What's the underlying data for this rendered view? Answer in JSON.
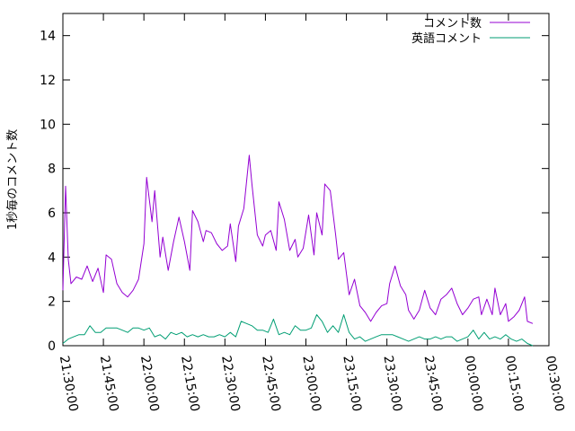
{
  "chart_data": {
    "type": "line",
    "ylabel": "1秒毎のコメント数",
    "xlabel": "",
    "title": "",
    "ylim": [
      0,
      15
    ],
    "y_ticks": [
      0,
      2,
      4,
      6,
      8,
      10,
      12,
      14
    ],
    "x_range": [
      "21:30:00",
      "00:30:00"
    ],
    "x_ticks": [
      "21:30:00",
      "21:45:00",
      "22:00:00",
      "22:15:00",
      "22:30:00",
      "22:45:00",
      "23:00:00",
      "23:15:00",
      "23:30:00",
      "23:45:00",
      "00:00:00",
      "00:15:00",
      "00:30:00"
    ],
    "grid": false,
    "legend_position": "top-right",
    "series": [
      {
        "name": "コメント数",
        "color": "#9400d3",
        "points": [
          [
            "21:30:00",
            2.5
          ],
          [
            "21:31:00",
            7.2
          ],
          [
            "21:32:00",
            3.9
          ],
          [
            "21:33:00",
            2.8
          ],
          [
            "21:35:00",
            3.1
          ],
          [
            "21:37:00",
            3.0
          ],
          [
            "21:39:00",
            3.6
          ],
          [
            "21:41:00",
            2.9
          ],
          [
            "21:43:00",
            3.5
          ],
          [
            "21:45:00",
            2.4
          ],
          [
            "21:46:00",
            4.1
          ],
          [
            "21:48:00",
            3.9
          ],
          [
            "21:50:00",
            2.8
          ],
          [
            "21:52:00",
            2.4
          ],
          [
            "21:54:00",
            2.2
          ],
          [
            "21:56:00",
            2.5
          ],
          [
            "21:58:00",
            3.0
          ],
          [
            "22:00:00",
            4.6
          ],
          [
            "22:01:00",
            7.6
          ],
          [
            "22:03:00",
            5.6
          ],
          [
            "22:04:00",
            7.0
          ],
          [
            "22:06:00",
            4.0
          ],
          [
            "22:07:00",
            4.9
          ],
          [
            "22:09:00",
            3.4
          ],
          [
            "22:11:00",
            4.7
          ],
          [
            "22:13:00",
            5.8
          ],
          [
            "22:15:00",
            4.7
          ],
          [
            "22:17:00",
            3.4
          ],
          [
            "22:18:00",
            6.1
          ],
          [
            "22:20:00",
            5.6
          ],
          [
            "22:22:00",
            4.7
          ],
          [
            "22:23:00",
            5.2
          ],
          [
            "22:25:00",
            5.1
          ],
          [
            "22:27:00",
            4.6
          ],
          [
            "22:29:00",
            4.3
          ],
          [
            "22:31:00",
            4.5
          ],
          [
            "22:32:00",
            5.5
          ],
          [
            "22:34:00",
            3.8
          ],
          [
            "22:35:00",
            5.4
          ],
          [
            "22:37:00",
            6.2
          ],
          [
            "22:39:00",
            8.6
          ],
          [
            "22:40:00",
            7.3
          ],
          [
            "22:42:00",
            5.0
          ],
          [
            "22:44:00",
            4.5
          ],
          [
            "22:45:00",
            5.0
          ],
          [
            "22:47:00",
            5.2
          ],
          [
            "22:49:00",
            4.3
          ],
          [
            "22:50:00",
            6.5
          ],
          [
            "22:52:00",
            5.7
          ],
          [
            "22:54:00",
            4.3
          ],
          [
            "22:56:00",
            4.8
          ],
          [
            "22:57:00",
            4.0
          ],
          [
            "22:59:00",
            4.4
          ],
          [
            "23:01:00",
            5.9
          ],
          [
            "23:03:00",
            4.1
          ],
          [
            "23:04:00",
            6.0
          ],
          [
            "23:06:00",
            5.0
          ],
          [
            "23:07:00",
            7.3
          ],
          [
            "23:09:00",
            7.0
          ],
          [
            "23:11:00",
            5.0
          ],
          [
            "23:12:00",
            3.9
          ],
          [
            "23:14:00",
            4.2
          ],
          [
            "23:16:00",
            2.3
          ],
          [
            "23:18:00",
            3.0
          ],
          [
            "23:20:00",
            1.8
          ],
          [
            "23:22:00",
            1.5
          ],
          [
            "23:24:00",
            1.1
          ],
          [
            "23:26:00",
            1.5
          ],
          [
            "23:28:00",
            1.8
          ],
          [
            "23:30:00",
            1.9
          ],
          [
            "23:31:00",
            2.8
          ],
          [
            "23:33:00",
            3.6
          ],
          [
            "23:35:00",
            2.7
          ],
          [
            "23:37:00",
            2.3
          ],
          [
            "23:38:00",
            1.6
          ],
          [
            "23:40:00",
            1.2
          ],
          [
            "23:42:00",
            1.6
          ],
          [
            "23:44:00",
            2.5
          ],
          [
            "23:46:00",
            1.7
          ],
          [
            "23:48:00",
            1.4
          ],
          [
            "23:50:00",
            2.1
          ],
          [
            "23:52:00",
            2.3
          ],
          [
            "23:54:00",
            2.6
          ],
          [
            "23:56:00",
            1.9
          ],
          [
            "23:58:00",
            1.4
          ],
          [
            "00:00:00",
            1.7
          ],
          [
            "00:02:00",
            2.1
          ],
          [
            "00:04:00",
            2.2
          ],
          [
            "00:05:00",
            1.4
          ],
          [
            "00:07:00",
            2.1
          ],
          [
            "00:09:00",
            1.4
          ],
          [
            "00:10:00",
            2.6
          ],
          [
            "00:12:00",
            1.4
          ],
          [
            "00:14:00",
            1.9
          ],
          [
            "00:15:00",
            1.1
          ],
          [
            "00:17:00",
            1.3
          ],
          [
            "00:19:00",
            1.6
          ],
          [
            "00:21:00",
            2.2
          ],
          [
            "00:22:00",
            1.1
          ],
          [
            "00:24:00",
            1.0
          ]
        ]
      },
      {
        "name": "英語コメント",
        "color": "#009e73",
        "points": [
          [
            "21:30:00",
            0.1
          ],
          [
            "21:32:00",
            0.3
          ],
          [
            "21:34:00",
            0.4
          ],
          [
            "21:36:00",
            0.5
          ],
          [
            "21:38:00",
            0.5
          ],
          [
            "21:40:00",
            0.9
          ],
          [
            "21:42:00",
            0.6
          ],
          [
            "21:44:00",
            0.6
          ],
          [
            "21:46:00",
            0.8
          ],
          [
            "21:48:00",
            0.8
          ],
          [
            "21:50:00",
            0.8
          ],
          [
            "21:52:00",
            0.7
          ],
          [
            "21:54:00",
            0.6
          ],
          [
            "21:56:00",
            0.8
          ],
          [
            "21:58:00",
            0.8
          ],
          [
            "22:00:00",
            0.7
          ],
          [
            "22:02:00",
            0.8
          ],
          [
            "22:04:00",
            0.4
          ],
          [
            "22:06:00",
            0.5
          ],
          [
            "22:08:00",
            0.3
          ],
          [
            "22:10:00",
            0.6
          ],
          [
            "22:12:00",
            0.5
          ],
          [
            "22:14:00",
            0.6
          ],
          [
            "22:16:00",
            0.4
          ],
          [
            "22:18:00",
            0.5
          ],
          [
            "22:20:00",
            0.4
          ],
          [
            "22:22:00",
            0.5
          ],
          [
            "22:24:00",
            0.4
          ],
          [
            "22:26:00",
            0.4
          ],
          [
            "22:28:00",
            0.5
          ],
          [
            "22:30:00",
            0.4
          ],
          [
            "22:32:00",
            0.6
          ],
          [
            "22:34:00",
            0.4
          ],
          [
            "22:36:00",
            1.1
          ],
          [
            "22:38:00",
            1.0
          ],
          [
            "22:40:00",
            0.9
          ],
          [
            "22:42:00",
            0.7
          ],
          [
            "22:44:00",
            0.7
          ],
          [
            "22:46:00",
            0.6
          ],
          [
            "22:48:00",
            1.2
          ],
          [
            "22:50:00",
            0.5
          ],
          [
            "22:52:00",
            0.6
          ],
          [
            "22:54:00",
            0.5
          ],
          [
            "22:56:00",
            0.9
          ],
          [
            "22:58:00",
            0.7
          ],
          [
            "23:00:00",
            0.7
          ],
          [
            "23:02:00",
            0.8
          ],
          [
            "23:04:00",
            1.4
          ],
          [
            "23:06:00",
            1.1
          ],
          [
            "23:08:00",
            0.6
          ],
          [
            "23:10:00",
            0.9
          ],
          [
            "23:12:00",
            0.6
          ],
          [
            "23:14:00",
            1.4
          ],
          [
            "23:16:00",
            0.6
          ],
          [
            "23:18:00",
            0.3
          ],
          [
            "23:20:00",
            0.4
          ],
          [
            "23:22:00",
            0.2
          ],
          [
            "23:24:00",
            0.3
          ],
          [
            "23:26:00",
            0.4
          ],
          [
            "23:28:00",
            0.5
          ],
          [
            "23:30:00",
            0.5
          ],
          [
            "23:32:00",
            0.5
          ],
          [
            "23:34:00",
            0.4
          ],
          [
            "23:36:00",
            0.3
          ],
          [
            "23:38:00",
            0.2
          ],
          [
            "23:40:00",
            0.3
          ],
          [
            "23:42:00",
            0.4
          ],
          [
            "23:44:00",
            0.3
          ],
          [
            "23:46:00",
            0.3
          ],
          [
            "23:48:00",
            0.4
          ],
          [
            "23:50:00",
            0.3
          ],
          [
            "23:52:00",
            0.4
          ],
          [
            "23:54:00",
            0.4
          ],
          [
            "23:56:00",
            0.2
          ],
          [
            "23:58:00",
            0.3
          ],
          [
            "00:00:00",
            0.4
          ],
          [
            "00:02:00",
            0.7
          ],
          [
            "00:04:00",
            0.3
          ],
          [
            "00:06:00",
            0.6
          ],
          [
            "00:08:00",
            0.3
          ],
          [
            "00:10:00",
            0.4
          ],
          [
            "00:12:00",
            0.3
          ],
          [
            "00:14:00",
            0.5
          ],
          [
            "00:16:00",
            0.3
          ],
          [
            "00:18:00",
            0.2
          ],
          [
            "00:20:00",
            0.3
          ],
          [
            "00:22:00",
            0.1
          ],
          [
            "00:24:00",
            0.0
          ]
        ]
      }
    ]
  }
}
